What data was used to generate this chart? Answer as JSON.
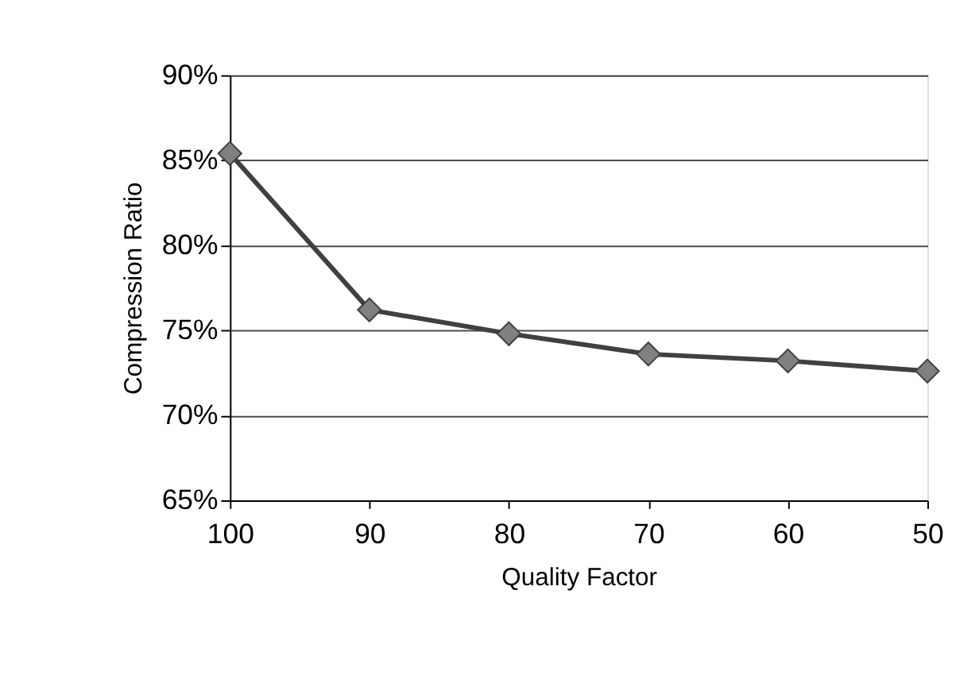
{
  "chart_data": {
    "type": "line",
    "xlabel": "Quality Factor",
    "ylabel": "Compression Ratio",
    "categories": [
      "100",
      "90",
      "80",
      "70",
      "60",
      "50"
    ],
    "series": [
      {
        "color": "#404040",
        "values": [
          85.4,
          76.2,
          74.8,
          73.6,
          73.2,
          72.6
        ]
      }
    ],
    "ylim": [
      65,
      90
    ],
    "yticks": [
      {
        "value": 65,
        "label": "65%"
      },
      {
        "value": 70,
        "label": "70%"
      },
      {
        "value": 75,
        "label": "75%"
      },
      {
        "value": 80,
        "label": "80%"
      },
      {
        "value": 85,
        "label": "85%"
      },
      {
        "value": 90,
        "label": "90%"
      }
    ],
    "grid": "y",
    "marker": "diamond",
    "line_style": "solid"
  }
}
